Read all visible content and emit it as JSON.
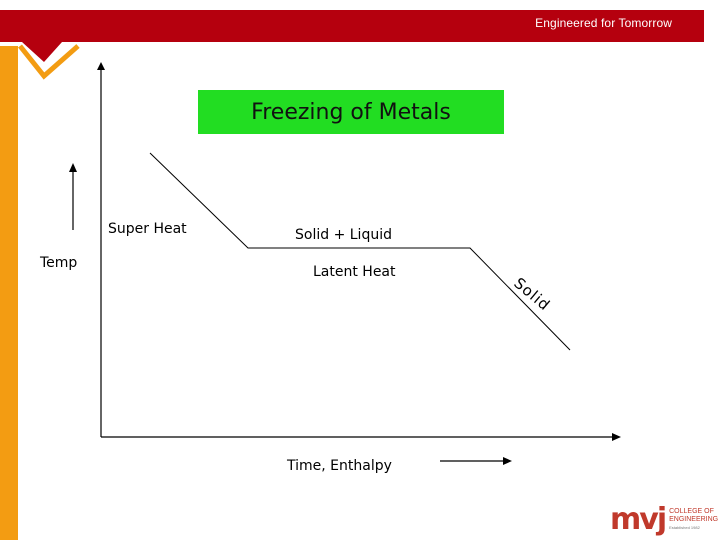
{
  "header": {
    "tagline": "Engineered for Tomorrow"
  },
  "title": "Freezing of Metals",
  "labels": {
    "y_axis": "Temp",
    "x_axis": "Time, Enthalpy",
    "superheat": "Super Heat",
    "solid_liquid": "Solid + Liquid",
    "latent_heat": "Latent Heat",
    "solid": "Solid"
  },
  "logo": {
    "mark": "mvj",
    "line1": "COLLEGE OF",
    "line2": "ENGINEERING",
    "line3": "Established 1982"
  },
  "colors": {
    "banner": "#b5000e",
    "accent_orange": "#f39c12",
    "title_bg": "#22dd22",
    "logo": "#c0392b"
  }
}
